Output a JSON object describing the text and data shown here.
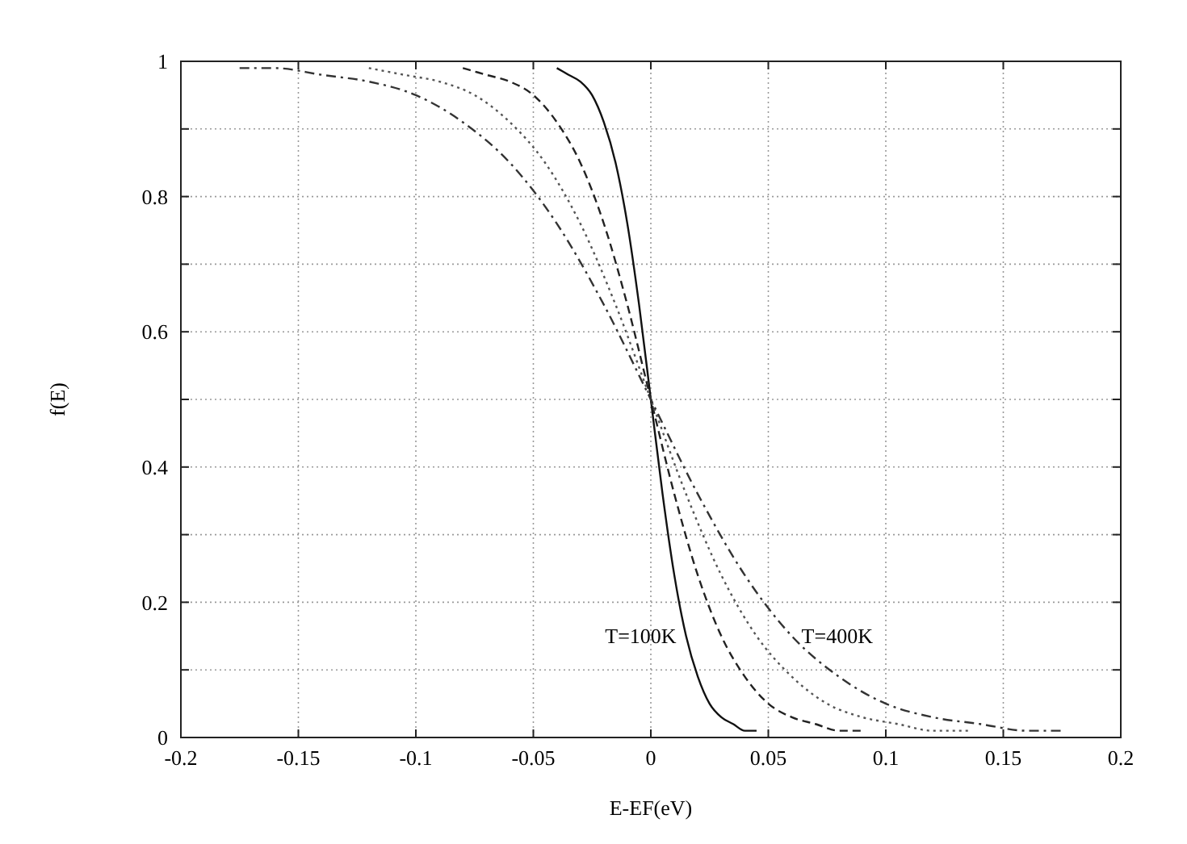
{
  "chart_data": {
    "type": "line",
    "xlabel": "E-EF(eV)",
    "ylabel": "f(E)",
    "xlim": [
      -0.2,
      0.2
    ],
    "ylim": [
      0,
      1
    ],
    "xticks": [
      -0.2,
      -0.15,
      -0.1,
      -0.05,
      0,
      0.05,
      0.1,
      0.15,
      0.2
    ],
    "yticks": [
      0,
      {
        "value": 0.1,
        "label": null
      },
      0.2,
      {
        "value": 0.3,
        "label": null
      },
      0.4,
      {
        "value": 0.5,
        "label": null
      },
      0.6,
      {
        "value": 0.7,
        "label": null
      },
      0.8,
      {
        "value": 0.9,
        "label": null
      },
      1
    ],
    "grid": true,
    "series": [
      {
        "name": "T=100K",
        "color": "#111111",
        "line_style": "solid",
        "x": [
          -0.04,
          -0.035,
          -0.03,
          -0.025,
          -0.02,
          -0.015,
          -0.01,
          -0.005,
          0,
          0.005,
          0.01,
          0.015,
          0.02,
          0.025,
          0.03,
          0.035,
          0.04,
          0.045
        ],
        "values": [
          0.99,
          0.98,
          0.97,
          0.95,
          0.91,
          0.85,
          0.76,
          0.64,
          0.5,
          0.36,
          0.24,
          0.15,
          0.09,
          0.05,
          0.03,
          0.02,
          0.01,
          0.01
        ]
      },
      {
        "color": "#222222",
        "line_style": "dashed",
        "x": [
          -0.08,
          -0.07,
          -0.06,
          -0.05,
          -0.04,
          -0.03,
          -0.02,
          -0.01,
          0,
          0.01,
          0.02,
          0.03,
          0.04,
          0.05,
          0.06,
          0.07,
          0.08,
          0.09
        ],
        "values": [
          0.99,
          0.98,
          0.97,
          0.95,
          0.91,
          0.85,
          0.76,
          0.64,
          0.5,
          0.36,
          0.24,
          0.15,
          0.09,
          0.05,
          0.03,
          0.02,
          0.01,
          0.01
        ]
      },
      {
        "color": "#555555",
        "line_style": "dotted",
        "x": [
          -0.12,
          -0.105,
          -0.09,
          -0.075,
          -0.06,
          -0.045,
          -0.03,
          -0.015,
          0,
          0.015,
          0.03,
          0.045,
          0.06,
          0.075,
          0.09,
          0.105,
          0.12,
          0.135
        ],
        "values": [
          0.99,
          0.98,
          0.97,
          0.95,
          0.91,
          0.85,
          0.76,
          0.64,
          0.5,
          0.36,
          0.24,
          0.15,
          0.09,
          0.05,
          0.03,
          0.02,
          0.01,
          0.01
        ]
      },
      {
        "name": "T=400K",
        "color": "#333333",
        "line_style": "dashdot",
        "x": [
          -0.175,
          -0.16,
          -0.14,
          -0.12,
          -0.1,
          -0.08,
          -0.06,
          -0.04,
          -0.02,
          0,
          0.02,
          0.04,
          0.06,
          0.08,
          0.1,
          0.12,
          0.14,
          0.16,
          0.175
        ],
        "values": [
          0.99,
          0.99,
          0.98,
          0.97,
          0.95,
          0.91,
          0.85,
          0.76,
          0.64,
          0.5,
          0.36,
          0.24,
          0.15,
          0.09,
          0.05,
          0.03,
          0.02,
          0.01,
          0.01
        ]
      }
    ]
  }
}
